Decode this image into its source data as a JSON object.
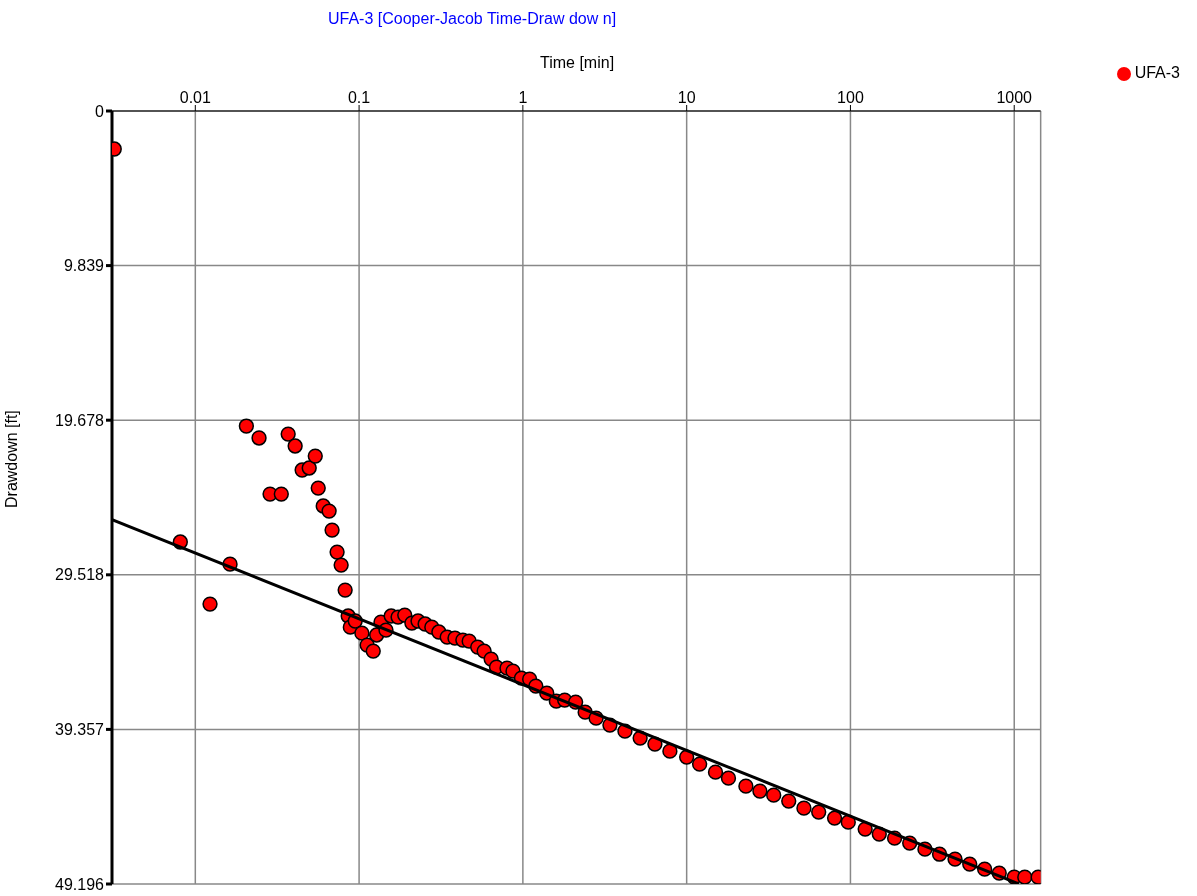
{
  "chart_data": {
    "type": "scatter",
    "title": "UFA-3 [Cooper-Jacob Time-Draw dow n]",
    "xlabel": "Time [min]",
    "ylabel": "Drawdown [ft]",
    "log": "x",
    "xlim": [
      0.0031,
      1450
    ],
    "xticks": [
      0.01,
      0.1,
      1,
      10,
      100,
      1000
    ],
    "ylim": [
      49.196,
      0
    ],
    "yticks": [
      0,
      9.839,
      19.678,
      29.518,
      39.357,
      49.196
    ],
    "grid": true,
    "legend": "top right",
    "series": [
      {
        "name": "UFA-3",
        "type": "scatter",
        "marker": "circle",
        "color": "#ff0000",
        "x": [
          0.0032,
          0.0081,
          0.0123,
          0.0163,
          0.0205,
          0.0245,
          0.0286,
          0.0335,
          0.0369,
          0.0407,
          0.0449,
          0.0496,
          0.054,
          0.0563,
          0.0604,
          0.0656,
          0.0684,
          0.0734,
          0.0777,
          0.0822,
          0.0858,
          0.0884,
          0.0947,
          0.104,
          0.112,
          0.122,
          0.128,
          0.136,
          0.146,
          0.157,
          0.173,
          0.19,
          0.21,
          0.229,
          0.253,
          0.278,
          0.307,
          0.345,
          0.385,
          0.43,
          0.47,
          0.53,
          0.58,
          0.64,
          0.69,
          0.8,
          0.87,
          0.98,
          1.1,
          1.2,
          1.4,
          1.6,
          1.8,
          2.1,
          2.4,
          2.8,
          3.4,
          4.2,
          5.2,
          6.4,
          7.9,
          10,
          12,
          15,
          18,
          23,
          28,
          34,
          42,
          52,
          64,
          80,
          97,
          123,
          150,
          186,
          230,
          285,
          350,
          435,
          535,
          660,
          810,
          1000,
          1160,
          1400
        ],
        "values": [
          2.42,
          27.43,
          31.38,
          28.84,
          20.05,
          20.81,
          24.38,
          24.38,
          20.56,
          21.32,
          22.85,
          22.72,
          21.96,
          24.0,
          25.14,
          25.46,
          26.67,
          28.07,
          28.9,
          30.49,
          32.14,
          32.85,
          32.46,
          33.23,
          33.99,
          34.37,
          33.35,
          32.53,
          33.04,
          32.14,
          32.21,
          32.08,
          32.59,
          32.46,
          32.65,
          32.85,
          33.16,
          33.48,
          33.55,
          33.67,
          33.74,
          34.12,
          34.37,
          34.88,
          35.39,
          35.46,
          35.65,
          36.09,
          36.16,
          36.6,
          37.05,
          37.56,
          37.49,
          37.62,
          38.26,
          38.64,
          39.08,
          39.47,
          39.91,
          40.29,
          40.74,
          41.12,
          41.57,
          42.08,
          42.46,
          42.97,
          43.28,
          43.54,
          43.92,
          44.37,
          44.62,
          45.0,
          45.26,
          45.7,
          46.02,
          46.28,
          46.59,
          46.98,
          47.3,
          47.61,
          47.93,
          48.25,
          48.5,
          48.76,
          48.76,
          48.76
        ]
      },
      {
        "type": "line",
        "marker": "none",
        "color": "#000000",
        "x": [
          0.0031,
          1068
        ],
        "values": [
          26.0,
          49.19
        ]
      }
    ]
  }
}
